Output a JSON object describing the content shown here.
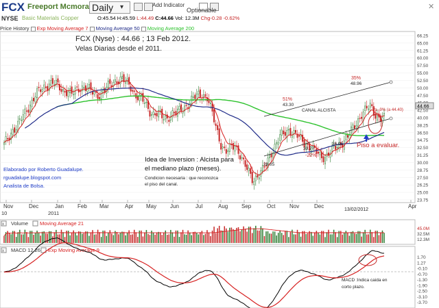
{
  "header": {
    "ticker": "FCX",
    "company": "Freeport Mcmoran C&G B",
    "period": "Daily",
    "add_indicator": "Add Indicator",
    "optionable": "Optionable",
    "exchange": "NYSE",
    "exchange_sub": "Basic Materials Copper"
  },
  "quote": {
    "open": "O:45.54",
    "high": "H:45.59",
    "low": "L:44.49",
    "close": "C:44.66",
    "vol": "Vol: 12.3M",
    "chg": "Chg-0.28",
    "pct": "-0.62%"
  },
  "indicators": {
    "price_history": "Price History",
    "ema7": "Exp Moving Average 7",
    "ma50": "Moving Average 50",
    "ma200": "Moving Average 200",
    "volume": "Volume",
    "vol_ma": "Moving Average 21",
    "macd": "MACD 12 26",
    "macd_ema": "Exp Moving Average 9"
  },
  "colors": {
    "up": "#2e7d32",
    "down": "#c62828",
    "ema7": "#d62020",
    "ma50": "#1e2a88",
    "ma200": "#2cc22c",
    "channel": "#222222",
    "macd_line": "#000000",
    "signal_line": "#d62020"
  },
  "annotations": {
    "title": "FCX (Nyse) : 44.66 ; 13 Feb 2012.",
    "subtitle": "Velas Diarias  desde el 2011.",
    "canal": "CANAL ALCISTA",
    "pct51": "51%",
    "pct35": "35%",
    "pct22": "-22%",
    "va9": "Va -9% (a 44.40)",
    "piso": "Piso a evaluar.",
    "idea1": "Idea de Inversion : Alcista para",
    "idea2": "el mediano plazo (meses).",
    "cond1": "Condicion necesaria : que reconozca",
    "cond2": "el piso del canal.",
    "author1": "Elaborado por Roberto Guadalupe.",
    "author2": "rguadalupe.blogspot.com",
    "author3": "Analista de Bolsa.",
    "date_mark": "13/02/2012",
    "macd_note1": "MACD :Indica caida en",
    "macd_note2": "corto plazo.",
    "lv_2885": "28.85",
    "lv_4330": "43.30",
    "lv_3377": "33.77",
    "lv_3605": "36.05",
    "lv_4896": "48.96"
  },
  "chart_data": {
    "type": "line",
    "title": "FCX (Nyse) : 44.66 ; 13 Feb 2012.",
    "x_ticks": [
      "Nov",
      "Dec",
      "Jan",
      "Feb",
      "Mar",
      "Apr",
      "May",
      "Jun",
      "Jul",
      "Aug",
      "Sep",
      "Oct",
      "Nov",
      "Dec",
      "Apr"
    ],
    "x_sub_labels": [
      "10",
      "2011"
    ],
    "y_ticks": [
      "66.25",
      "65.00",
      "61.25",
      "60.00",
      "57.50",
      "55.00",
      "52.50",
      "50.00",
      "47.50",
      "45.00",
      "42.50",
      "40.00",
      "38.25",
      "36.50",
      "34.75",
      "32.50",
      "31.25",
      "30.00",
      "28.75",
      "27.50",
      "26.25",
      "25.00",
      "23.75"
    ],
    "price_tag": "44.66",
    "ylim": [
      23.75,
      66.25
    ],
    "close_series": [
      38,
      40,
      42,
      43,
      45,
      47,
      49,
      51,
      52,
      53,
      54,
      54,
      53,
      52,
      52,
      51,
      52,
      53,
      53,
      52,
      51,
      51,
      52,
      53,
      54,
      55,
      55,
      54,
      53,
      51,
      50,
      49,
      47,
      46,
      46,
      45,
      45,
      46,
      46,
      47,
      48,
      49,
      50,
      51,
      51,
      50,
      46,
      42,
      38,
      36,
      37,
      38,
      36,
      33,
      31,
      29,
      30,
      31,
      33,
      36,
      38,
      40,
      41,
      42,
      41,
      40,
      39,
      38,
      37,
      36,
      35,
      35,
      36,
      37,
      38,
      39,
      40,
      42,
      44,
      46,
      47,
      48,
      46,
      45,
      44.66
    ],
    "points": [
      {
        "label": "28.85",
        "value": 28.85
      },
      {
        "label": "43.30",
        "value": 43.3
      },
      {
        "label": "33.77",
        "value": 33.77
      },
      {
        "label": "36.05",
        "value": 36.05
      },
      {
        "label": "48.96",
        "value": 48.96
      }
    ],
    "volume_ticks": [
      "45.0M",
      "32.5M",
      "12.3M"
    ],
    "macd_ticks": [
      "1.70",
      "1.27",
      "-0.10",
      "-0.70",
      "-1.30",
      "-1.90",
      "-2.50",
      "-3.10",
      "-3.70"
    ]
  }
}
